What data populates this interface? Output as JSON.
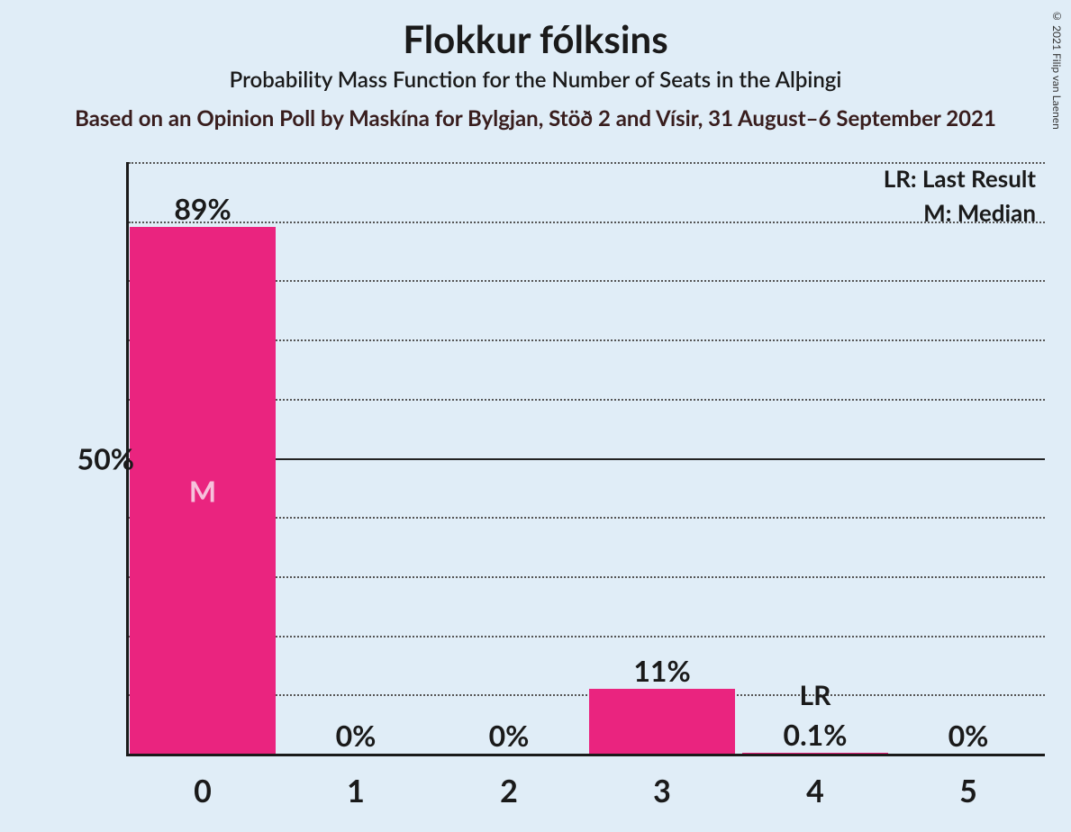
{
  "copyright": "© 2021 Filip van Laenen",
  "title": "Flokkur fólksins",
  "subtitle": "Probability Mass Function for the Number of Seats in the Alþingi",
  "subtitle2": "Based on an Opinion Poll by Maskína for Bylgjan, Stöð 2 and Vísir, 31 August–6 September 2021",
  "legend": {
    "lr": "LR: Last Result",
    "m": "M: Median"
  },
  "chart": {
    "type": "bar",
    "background_color": "#e0edf7",
    "bar_color": "#ea247f",
    "bar_inner_text_color": "#f6c1db",
    "text_color": "#1a1a1a",
    "grid_dotted_color": "#555555",
    "grid_solid_color": "#222222",
    "axis_color": "#1a1a1a",
    "ymax_percent": 100,
    "ytick_step": 10,
    "y_major_tick": 50,
    "y_major_label": "50%",
    "categories": [
      "0",
      "1",
      "2",
      "3",
      "4",
      "5"
    ],
    "values_percent": [
      89,
      0,
      0,
      11,
      0.1,
      0
    ],
    "value_labels": [
      "89%",
      "0%",
      "0%",
      "11%",
      "0.1%",
      "0%"
    ],
    "median_index": 0,
    "median_label": "M",
    "last_result_index": 4,
    "last_result_label": "LR",
    "title_fontsize": 42,
    "subtitle_fontsize": 24,
    "axis_label_fontsize": 32,
    "bar_width_ratio": 0.95
  }
}
